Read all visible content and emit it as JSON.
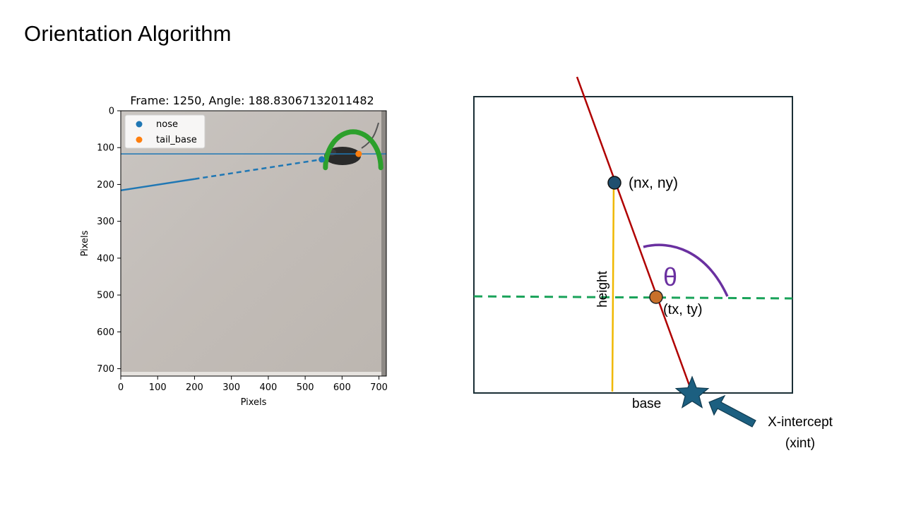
{
  "slide": {
    "title": "Orientation Algorithm"
  },
  "plot": {
    "title": "Frame: 1250, Angle: 188.83067132011482",
    "xlabel": "Pixels",
    "ylabel": "Pixels",
    "xlim": [
      0,
      720
    ],
    "ylim": [
      720,
      0
    ],
    "x_ticks": [
      "0",
      "100",
      "200",
      "300",
      "400",
      "500",
      "600",
      "700"
    ],
    "y_ticks": [
      "0",
      "100",
      "200",
      "300",
      "400",
      "500",
      "600",
      "700"
    ],
    "legend": [
      {
        "label": "nose",
        "color": "#1f77b4"
      },
      {
        "label": "tail_base",
        "color": "#ff7f0e"
      }
    ],
    "colors": {
      "horizontal": "#1f77b4",
      "arc": "#2ca02c",
      "background": "#c4bfba"
    }
  },
  "chart_data": {
    "type": "scatter",
    "title": "Frame: 1250, Angle: 188.83067132011482",
    "xlabel": "Pixels",
    "ylabel": "Pixels",
    "xlim": [
      0,
      720
    ],
    "ylim": [
      720,
      0
    ],
    "series": [
      {
        "name": "nose",
        "points": [
          [
            545,
            132
          ]
        ]
      },
      {
        "name": "tail_base",
        "points": [
          [
            645,
            117
          ]
        ]
      }
    ],
    "orientation_line": {
      "from": [
        0,
        216
      ],
      "to": [
        545,
        132
      ]
    },
    "horizontal_line_y": 117,
    "angle_arc": {
      "center": [
        630,
        117
      ],
      "radius": 75
    }
  },
  "diagram": {
    "nose_label": "(nx, ny)",
    "tail_label": "(tx, ty)",
    "theta_label": "θ",
    "height_label": "height",
    "base_label": "base",
    "xint_label_1": "X-intercept",
    "xint_label_2": "(xint)",
    "colors": {
      "frame": "#1a2e35",
      "red_line": "#b00000",
      "green_dash": "#1aa35a",
      "yellow": "#f0b800",
      "purple": "#6a30a0",
      "nose_fill": "#1f4f6f",
      "tail_fill": "#c8702a",
      "star": "#1c5f80",
      "arrow": "#1c5f80"
    }
  }
}
